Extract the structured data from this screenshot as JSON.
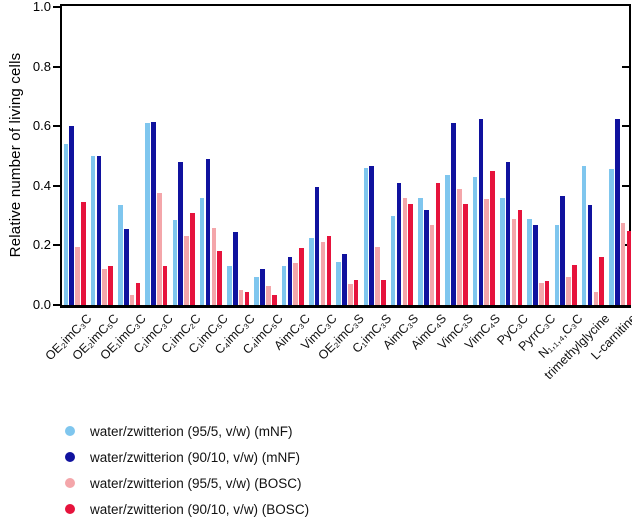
{
  "chart_data": {
    "type": "bar",
    "title": "",
    "ylabel": "Relative number of living cells",
    "xlabel": "",
    "ylim": [
      0,
      1.0
    ],
    "yticks": [
      "0.0",
      "0.2",
      "0.4",
      "0.6",
      "0.8",
      "1.0"
    ],
    "grid": false,
    "frame": true,
    "legend_position": "bottom-left",
    "legend_marker": "circle",
    "categories": [
      "OE₂imC₃C",
      "OE₂imC₅C",
      "OE₁imC₃C",
      "C₁imC₃C",
      "C₁imC₂C",
      "C₁imC₅C",
      "C₄imC₃C",
      "C₄imC₅C",
      "AimC₃C",
      "VimC₃C",
      "OE₂imC₃S",
      "C₁imC₃S",
      "AimC₃S",
      "AimC₄S",
      "VimC₃S",
      "VimC₄S",
      "PyC₃C",
      "PyrrC₃C",
      "N₁,₁,₄,C₃C",
      "trimethylglycine",
      "L-carnitine"
    ],
    "series": [
      {
        "name": "water/zwitterion (95/5, v/w) (mNF)",
        "color": "#7fc6ee",
        "values": [
          0.54,
          0.5,
          0.335,
          0.61,
          0.285,
          0.36,
          0.13,
          0.095,
          0.13,
          0.225,
          0.145,
          0.46,
          0.3,
          0.36,
          0.435,
          0.43,
          0.36,
          0.29,
          0.27,
          0.465,
          0.455
        ]
      },
      {
        "name": "water/zwitterion (90/10, v/w) (mNF)",
        "color": "#10129e",
        "values": [
          0.6,
          0.5,
          0.255,
          0.615,
          0.48,
          0.49,
          0.245,
          0.12,
          0.16,
          0.395,
          0.17,
          0.465,
          0.41,
          0.32,
          0.61,
          0.625,
          0.48,
          0.27,
          0.365,
          0.335,
          0.625
        ]
      },
      {
        "name": "water/zwitterion (95/5, v/w) (BOSC)",
        "color": "#f4a6aa",
        "values": [
          0.195,
          0.12,
          0.035,
          0.375,
          0.23,
          0.26,
          0.05,
          0.065,
          0.14,
          0.21,
          0.07,
          0.195,
          0.36,
          0.27,
          0.39,
          0.355,
          0.29,
          0.075,
          0.095,
          0.045,
          0.275
        ]
      },
      {
        "name": "water/zwitterion (90/10, v/w) (BOSC)",
        "color": "#e6133c",
        "values": [
          0.345,
          0.13,
          0.075,
          0.13,
          0.31,
          0.18,
          0.045,
          0.035,
          0.19,
          0.23,
          0.085,
          0.085,
          0.34,
          0.41,
          0.34,
          0.45,
          0.32,
          0.08,
          0.135,
          0.16,
          0.25
        ]
      }
    ]
  }
}
